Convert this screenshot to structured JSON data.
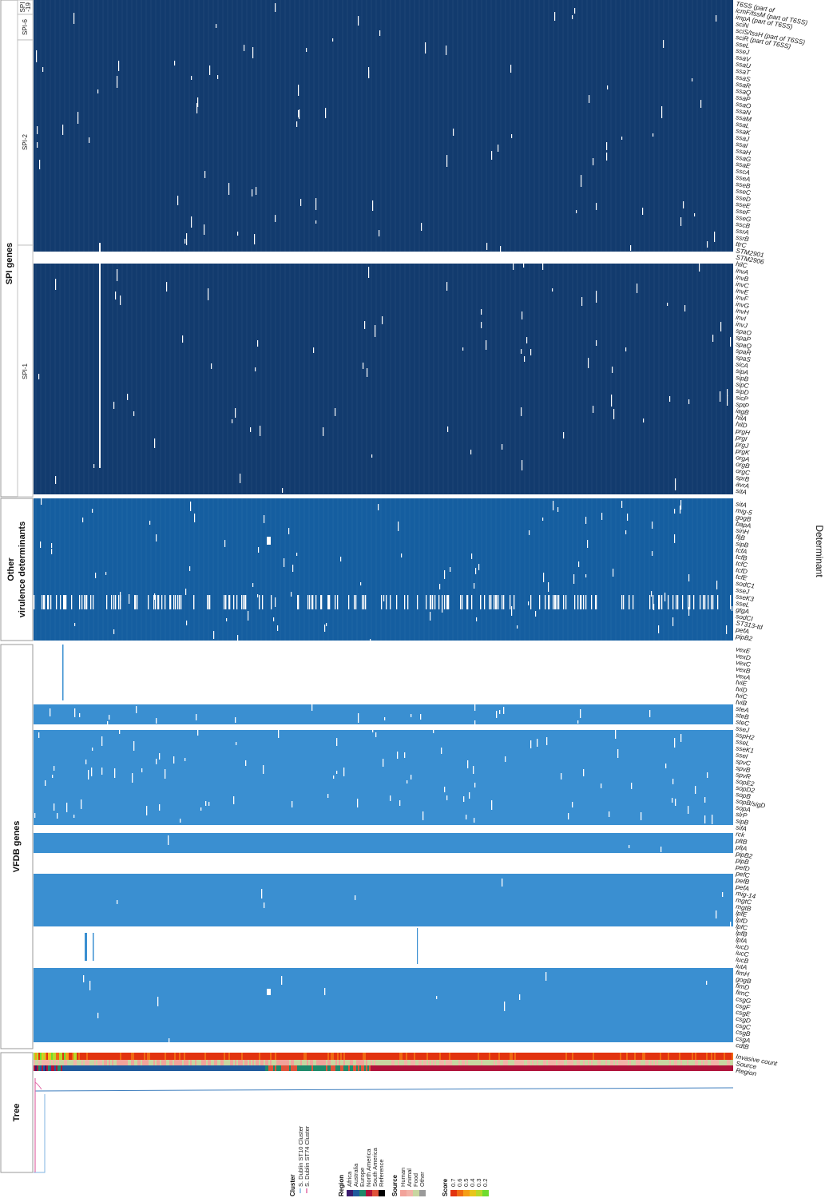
{
  "title": "",
  "axis": {
    "y_title": "Determinant"
  },
  "panels": {
    "spi": {
      "label": "SPI genes",
      "color": "#123b6e",
      "subgroups": [
        {
          "label": "SPI\n-19"
        },
        {
          "label": "SPI-6"
        },
        {
          "label": "SPI-2"
        },
        {
          "label": "SPI-1"
        }
      ]
    },
    "other": {
      "label_line1": "Other",
      "label_line2": "virulence determinants",
      "color": "#155ea0"
    },
    "vfdb": {
      "label": "VFDB genes",
      "color": "#3a8fd1"
    },
    "tree": {
      "label": "Tree"
    }
  },
  "gene_labels": {
    "spi": [
      "T6SS (part of",
      "icmF/tssM (part of T6SS)",
      "impA (part of T6SS)",
      "sciN",
      "sciS/tssH (part of T6SS)",
      "sciR (part of T6SS)",
      "sseL",
      "sseJ",
      "ssaV",
      "ssaU",
      "ssaT",
      "ssaS",
      "ssaR",
      "ssaQ",
      "ssaP",
      "ssaO",
      "ssaN",
      "ssaM",
      "ssaL",
      "ssaK",
      "ssaJ",
      "ssaI",
      "ssaH",
      "ssaG",
      "ssaE",
      "sscA",
      "sseA",
      "sseB",
      "sseC",
      "sseD",
      "sseE",
      "sseF",
      "sseG",
      "sscB",
      "ssrA",
      "ssrB",
      "ttrC",
      "STM2901",
      "STM2906",
      "hilC",
      "invA",
      "invB",
      "invC",
      "invE",
      "invF",
      "invG",
      "invH",
      "invI",
      "invJ",
      "spaO",
      "spaP",
      "spaQ",
      "spaR",
      "spaS",
      "sicA",
      "sipA",
      "sipB",
      "sipC",
      "sipD",
      "sicP",
      "sptP",
      "iagB",
      "hilA",
      "hilD",
      "prgH",
      "prgI",
      "prgJ",
      "prgK",
      "orgA",
      "orgB",
      "orgC",
      "sprB",
      "avrA",
      "sitA"
    ],
    "other": [
      "sitA",
      "mig-5",
      "gogB",
      "bapA",
      "sinH",
      "fljB",
      "sipB",
      "tcfA",
      "tcfB",
      "tcfC",
      "tcfD",
      "tcfE",
      "sodC1",
      "sseJ",
      "sseK3",
      "sseL",
      "gtgA",
      "sodCI",
      "ST313-td",
      "pefA",
      "pipB2"
    ],
    "vfdb": [
      "vexE",
      "vexD",
      "vexC",
      "vexB",
      "vexA",
      "tviE",
      "tviD",
      "tviC",
      "tviB",
      "steA",
      "steB",
      "steC",
      "sseJ",
      "sspH2",
      "sseL",
      "sseK1",
      "sseI",
      "spvC",
      "spvB",
      "spvR",
      "sopE2",
      "sopD2",
      "sopB",
      "sopB/sigD",
      "sopA",
      "slrP",
      "sipB",
      "sifA",
      "rck",
      "pltB",
      "pltA",
      "pipB2",
      "pipB",
      "pefD",
      "pefC",
      "pefB",
      "pefA",
      "mig-14",
      "mgtC",
      "mgtB",
      "lpfE",
      "lpfD",
      "lpfC",
      "lpfB",
      "lpfA",
      "iucD",
      "iucC",
      "iucB",
      "iutA",
      "fimH",
      "gogB",
      "fimD",
      "fimC",
      "csgG",
      "csgF",
      "csgE",
      "csgD",
      "csgC",
      "csgB",
      "csgA",
      "cdtB"
    ],
    "annotation": [
      "Invasive count",
      "Source",
      "Region"
    ]
  },
  "legend": {
    "cluster": {
      "title": "Cluster",
      "items": [
        {
          "label": "S. Dublin ST10 Cluster",
          "color": "#7fb3e0"
        },
        {
          "label": "S. Dublin ST74 Cluster",
          "color": "#e06aa6"
        }
      ]
    },
    "region": {
      "title": "Region",
      "items": [
        {
          "label": "Africa",
          "color": "#3a1a6e"
        },
        {
          "label": "Australia",
          "color": "#1f5a9c"
        },
        {
          "label": "Europe",
          "color": "#1f8a6a"
        },
        {
          "label": "North America",
          "color": "#b0123a"
        },
        {
          "label": "South America",
          "color": "#e0533a"
        },
        {
          "label": "Reference",
          "color": "#000000"
        }
      ]
    },
    "source": {
      "title": "Source",
      "items": [
        {
          "label": "Human",
          "color": "#f2a39a"
        },
        {
          "label": "Animal",
          "color": "#f2b3a8"
        },
        {
          "label": "Food",
          "color": "#c8d6a0"
        },
        {
          "label": "Other",
          "color": "#9a9a9a"
        }
      ]
    },
    "score": {
      "title": "Score",
      "items": [
        {
          "label": "0.7",
          "color": "#e2330f"
        },
        {
          "label": "0.6",
          "color": "#f06a12"
        },
        {
          "label": "0.5",
          "color": "#f59e16"
        },
        {
          "label": "0.4",
          "color": "#e8c51a"
        },
        {
          "label": "0.3",
          "color": "#b8d92a"
        },
        {
          "label": "0.2",
          "color": "#6fdc2e"
        }
      ]
    }
  },
  "chart_data": {
    "type": "heatmap",
    "description_values": "presence (colored) / absence (white) of virulence determinants across isolates",
    "ylabel": "Determinant",
    "panels": [
      "SPI genes",
      "Other virulence determinants",
      "VFDB genes"
    ],
    "annotation_rows": [
      "Invasive count",
      "Source",
      "Region"
    ]
  }
}
